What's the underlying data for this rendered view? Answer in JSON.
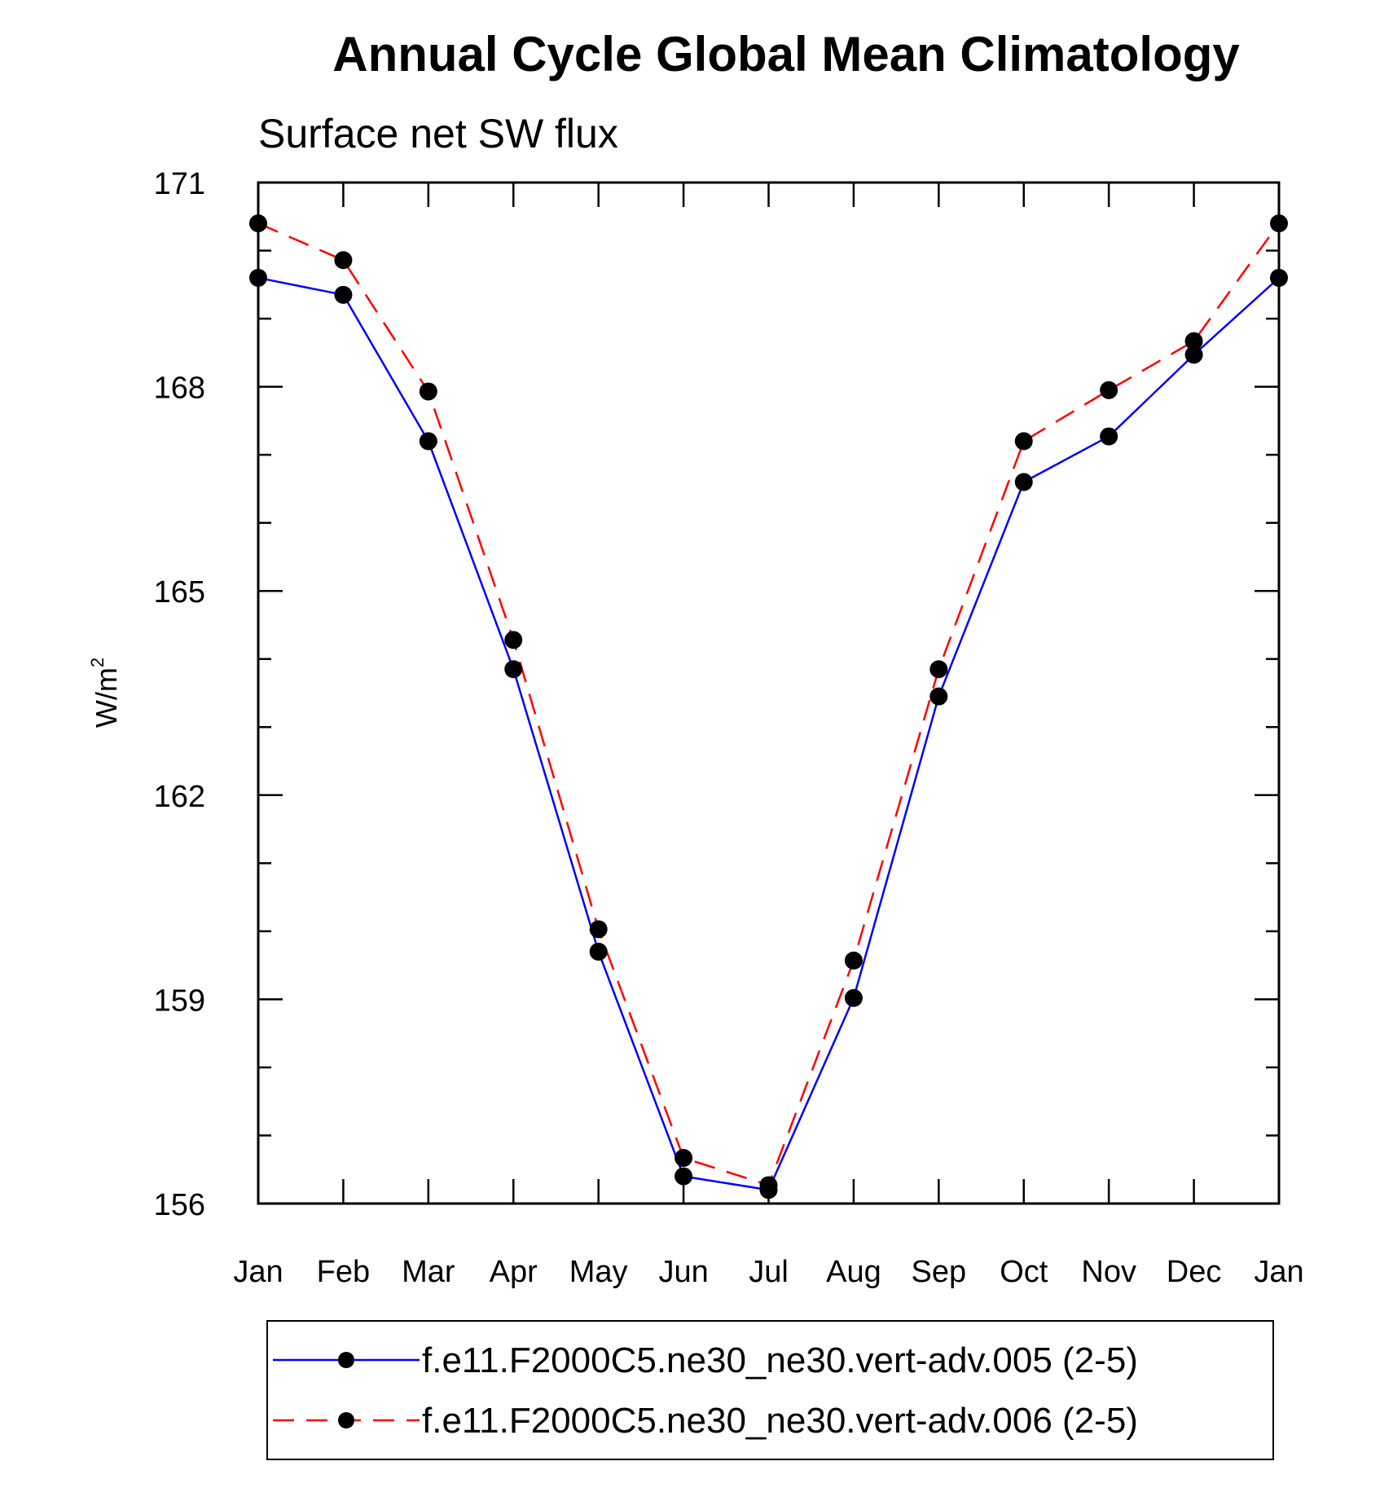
{
  "chart_data": {
    "type": "line",
    "title": "Annual Cycle Global Mean Climatology",
    "subtitle": "Surface net SW flux",
    "xlabel": "",
    "ylabel": "W/m",
    "ylabel_superscript": "2",
    "categories": [
      "Jan",
      "Feb",
      "Mar",
      "Apr",
      "May",
      "Jun",
      "Jul",
      "Aug",
      "Sep",
      "Oct",
      "Nov",
      "Dec",
      "Jan"
    ],
    "ylim": [
      156,
      171
    ],
    "yticks_major": [
      156,
      159,
      162,
      165,
      168,
      171
    ],
    "yticks_major_labels": [
      "156",
      "159",
      "162",
      "165",
      "168",
      "171"
    ],
    "yticks_minor_step": 1,
    "grid": false,
    "legend_position": "bottom",
    "series": [
      {
        "name": "f.e11.F2000C5.ne30_ne30.vert-adv.005 (2-5)",
        "color": "#0000ff",
        "dash": "solid",
        "values": [
          169.6,
          169.35,
          167.2,
          163.85,
          159.7,
          156.4,
          156.2,
          159.02,
          163.45,
          166.6,
          167.27,
          168.47,
          169.6
        ]
      },
      {
        "name": "f.e11.F2000C5.ne30_ne30.vert-adv.006 (2-5)",
        "color": "#ff0000",
        "dash": "dashed",
        "values": [
          170.4,
          169.86,
          167.93,
          164.28,
          160.03,
          156.67,
          156.27,
          159.57,
          163.85,
          167.2,
          167.95,
          168.67,
          170.4
        ]
      }
    ]
  }
}
